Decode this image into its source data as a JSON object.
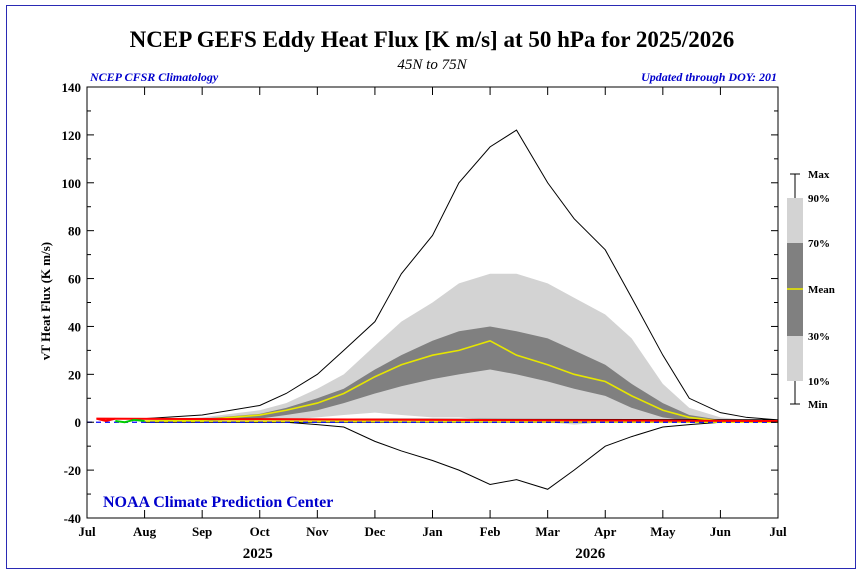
{
  "chart_data": {
    "type": "area",
    "title": "NCEP GEFS Eddy Heat Flux [K m/s] at 50 hPa for 2025/2026",
    "subtitle": "45N to 75N",
    "left_note": "NCEP CFSR Climatology",
    "right_note": "Updated through DOY: 201",
    "watermark": "NOAA Climate Prediction Center",
    "ylabel": "vT Heat Flux (K m/s)",
    "ylim": [
      -40,
      140
    ],
    "yticks": [
      -40,
      -20,
      0,
      20,
      40,
      60,
      80,
      100,
      120,
      140
    ],
    "month_labels": [
      "Jul",
      "Aug",
      "Sep",
      "Oct",
      "Nov",
      "Dec",
      "Jan",
      "Feb",
      "Mar",
      "Apr",
      "May",
      "Jun",
      "Jul"
    ],
    "year_labels": [
      "2025",
      "2026"
    ],
    "grid": false,
    "legend_position": "right",
    "legend_items": [
      "Max",
      "90%",
      "70%",
      "Mean",
      "30%",
      "10%",
      "Min"
    ],
    "colors": {
      "outer_band": "#d3d3d3",
      "inner_band": "#808080",
      "mean_line": "#e6e600",
      "max_min_line": "#000000",
      "zero_line": "#0000ff",
      "obs_early": "#ff0000",
      "obs_late": "#00cc00",
      "text_blue": "#0000cc"
    },
    "climatology": {
      "x": [
        "Jul 1",
        "Aug 1",
        "Sep 1",
        "Oct 1",
        "Oct 15",
        "Nov 1",
        "Nov 15",
        "Dec 1",
        "Dec 15",
        "Jan 1",
        "Jan 15",
        "Feb 1",
        "Feb 15",
        "Mar 1",
        "Mar 15",
        "Apr 1",
        "Apr 15",
        "May 1",
        "May 15",
        "Jun 1",
        "Jun 15",
        "Jul 1"
      ],
      "max": [
        1,
        1.5,
        3,
        7,
        12,
        20,
        30,
        42,
        62,
        78,
        100,
        115,
        122,
        100,
        85,
        72,
        52,
        28,
        10,
        4,
        2,
        1
      ],
      "p90": [
        0.5,
        1,
        2,
        5,
        8,
        14,
        20,
        32,
        42,
        50,
        58,
        62,
        62,
        58,
        52,
        45,
        35,
        16,
        6,
        2,
        1,
        0.5
      ],
      "p70": [
        0,
        0.5,
        1.5,
        3.5,
        6,
        10,
        14,
        22,
        28,
        34,
        38,
        40,
        38,
        35,
        30,
        24,
        16,
        8,
        3,
        1,
        0.5,
        0
      ],
      "mean": [
        0,
        0.5,
        1,
        3,
        5,
        8,
        12,
        19,
        24,
        28,
        30,
        34,
        28,
        24,
        20,
        17,
        11,
        5,
        2,
        0.5,
        0,
        0
      ],
      "p30": [
        0,
        0,
        0.5,
        1.5,
        3,
        5,
        8,
        12,
        15,
        18,
        20,
        22,
        20,
        17,
        14,
        11,
        6,
        2,
        0.5,
        0,
        0,
        0
      ],
      "p10": [
        0,
        0,
        0,
        0.5,
        1,
        2,
        3,
        4,
        3,
        2,
        2,
        1,
        1,
        0,
        -1,
        0,
        1,
        0,
        0,
        0,
        0,
        0
      ],
      "min": [
        0,
        0,
        0,
        0,
        0,
        -1,
        -2,
        -8,
        -12,
        -16,
        -20,
        -26,
        -24,
        -28,
        -20,
        -10,
        -6,
        -2,
        -1,
        0,
        0,
        0
      ]
    },
    "observed": {
      "red": {
        "x": [
          "Jul 1",
          "Jul 6",
          "Jul 11",
          "Jul 16"
        ],
        "values": [
          0.5,
          1.5,
          0.5,
          1.5
        ]
      },
      "green": {
        "x": [
          "Jul 16",
          "Jul 21",
          "Jul 26",
          "Aug 1"
        ],
        "values": [
          0.5,
          0,
          1,
          0.5
        ]
      }
    }
  }
}
